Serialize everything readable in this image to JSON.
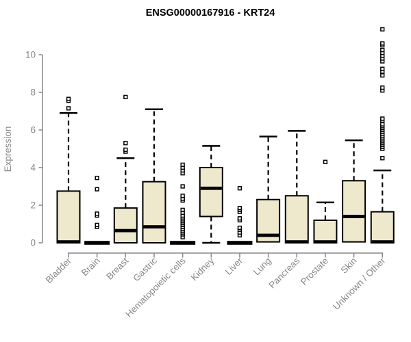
{
  "chart_data": {
    "type": "boxplot",
    "title": "ENSG00000167916 - KRT24",
    "xlabel": "",
    "ylabel": "Expression",
    "ylim": [
      0,
      11.5
    ],
    "yticks": [
      0,
      2,
      4,
      6,
      8,
      10
    ],
    "grid": false,
    "legend": "none",
    "colors": {
      "box_fill": "#EEE8CC",
      "box_stroke": "#000000",
      "median": "#000000",
      "axis_text": "#878787",
      "title_text": "#000000",
      "background": "#ffffff"
    },
    "categories": [
      "Bladder",
      "Brain",
      "Breast",
      "Gastric",
      "Hematopoietic cells",
      "Kidney",
      "Liver",
      "Lung",
      "Pancreas",
      "Prostate",
      "Skin",
      "Unknown / Other"
    ],
    "series": [
      {
        "name": "Bladder",
        "whisker_low": 0,
        "q1": 0,
        "median": 0.05,
        "q3": 2.75,
        "whisker_high": 6.9,
        "outliers": [
          7.15,
          7.55,
          7.65
        ]
      },
      {
        "name": "Brain",
        "whisker_low": 0,
        "q1": 0,
        "median": 0,
        "q3": 0,
        "whisker_high": 0,
        "outliers": [
          0.85,
          0.95,
          1.45,
          1.55,
          2.85,
          3.45
        ]
      },
      {
        "name": "Breast",
        "whisker_low": 0,
        "q1": 0,
        "median": 0.65,
        "q3": 1.85,
        "whisker_high": 4.5,
        "outliers": [
          4.85,
          4.95,
          5.3,
          7.75
        ]
      },
      {
        "name": "Gastric",
        "whisker_low": 0,
        "q1": 0,
        "median": 0.85,
        "q3": 3.25,
        "whisker_high": 7.1,
        "outliers": []
      },
      {
        "name": "Hematopoietic cells",
        "whisker_low": 0,
        "q1": 0,
        "median": 0,
        "q3": 0,
        "whisker_high": 0,
        "outliers": [
          0.3,
          0.45,
          0.55,
          0.65,
          0.75,
          0.85,
          0.95,
          1.05,
          1.15,
          1.25,
          1.35,
          1.45,
          1.6,
          1.75,
          2.25,
          2.35,
          2.5,
          3.0,
          3.7,
          3.85,
          4.0,
          4.15
        ]
      },
      {
        "name": "Kidney",
        "whisker_low": 0,
        "q1": 1.4,
        "median": 2.9,
        "q3": 4.0,
        "whisker_high": 5.15,
        "outliers": []
      },
      {
        "name": "Liver",
        "whisker_low": 0,
        "q1": 0,
        "median": 0,
        "q3": 0,
        "whisker_high": 0,
        "outliers": [
          0.4,
          0.55,
          0.7,
          0.8,
          1.2,
          1.3,
          1.65,
          1.75,
          1.85,
          2.9
        ]
      },
      {
        "name": "Lung",
        "whisker_low": 0.05,
        "q1": 0.05,
        "median": 0.4,
        "q3": 2.3,
        "whisker_high": 5.65,
        "outliers": []
      },
      {
        "name": "Pancreas",
        "whisker_low": 0,
        "q1": 0,
        "median": 0.05,
        "q3": 2.5,
        "whisker_high": 5.95,
        "outliers": []
      },
      {
        "name": "Prostate",
        "whisker_low": 0,
        "q1": 0,
        "median": 0.05,
        "q3": 1.2,
        "whisker_high": 2.15,
        "outliers": [
          4.3
        ]
      },
      {
        "name": "Skin",
        "whisker_low": 0.05,
        "q1": 0.05,
        "median": 1.4,
        "q3": 3.3,
        "whisker_high": 5.45,
        "outliers": []
      },
      {
        "name": "Unknown / Other",
        "whisker_low": 0,
        "q1": 0,
        "median": 0.05,
        "q3": 1.65,
        "whisker_high": 3.85,
        "outliers": [
          4.5,
          5.0,
          5.1,
          5.2,
          5.3,
          5.4,
          5.5,
          5.6,
          5.7,
          5.8,
          5.9,
          6.0,
          6.1,
          6.2,
          6.3,
          6.5,
          6.6,
          8.1,
          8.25,
          8.9,
          9.1,
          9.25,
          9.65,
          9.8,
          9.95,
          10.1,
          10.25,
          10.5,
          10.6,
          11.35
        ]
      }
    ]
  }
}
